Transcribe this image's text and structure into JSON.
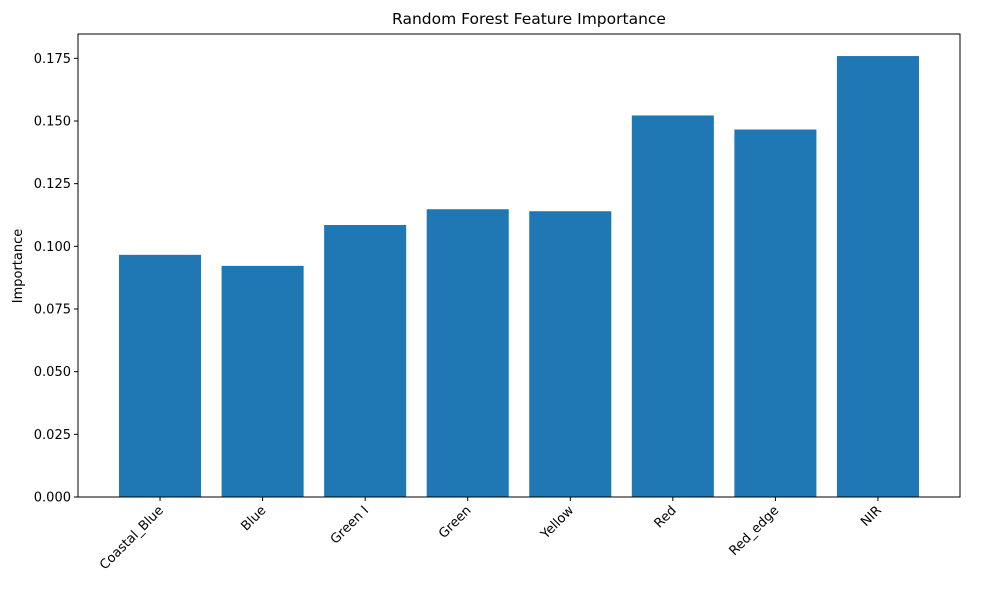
{
  "chart_data": {
    "type": "bar",
    "title": "Random Forest Feature Importance",
    "xlabel": "",
    "ylabel": "Importance",
    "categories": [
      "Coastal_Blue",
      "Blue",
      "Green I",
      "Green",
      "Yellow",
      "Red",
      "Red_edge",
      "NIR"
    ],
    "values": [
      0.0966,
      0.0922,
      0.1085,
      0.1148,
      0.114,
      0.1522,
      0.1466,
      0.1759
    ],
    "ylim": [
      0,
      0.1847
    ],
    "yticks": [
      "0.000",
      "0.025",
      "0.050",
      "0.075",
      "0.100",
      "0.125",
      "0.150",
      "0.175"
    ],
    "x_tick_rotation_deg": 45,
    "grid": false,
    "bar_color": "#1f77b4"
  }
}
